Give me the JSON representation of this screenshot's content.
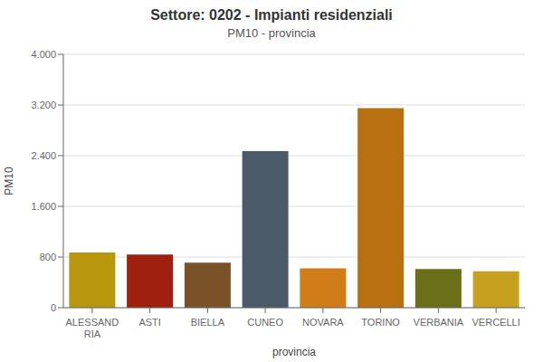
{
  "chart_data": {
    "type": "bar",
    "title": "Settore: 0202 - Impianti residenziali",
    "subtitle": "PM10 - provincia",
    "xlabel": "provincia",
    "ylabel": "PM10",
    "categories": [
      "ALESSAND\nRIA",
      "ASTI",
      "BIELLA",
      "CUNEO",
      "NOVARA",
      "TORINO",
      "VERBANIA",
      "VERCELLI"
    ],
    "values": [
      870,
      840,
      710,
      2470,
      620,
      3150,
      610,
      575
    ],
    "colors": [
      "#b8960e",
      "#a02010",
      "#7a5228",
      "#4a5a68",
      "#d07c18",
      "#b87010",
      "#6b7018",
      "#c8a020"
    ],
    "ylim": [
      0,
      4000
    ],
    "yticks": [
      0,
      800,
      {
        "value": 1600,
        "label": "1.600"
      },
      {
        "value": 2400,
        "label": "2.400"
      },
      {
        "value": 3200,
        "label": "3.200"
      },
      {
        "value": 4000,
        "label": "4.000"
      }
    ],
    "grid": true
  }
}
